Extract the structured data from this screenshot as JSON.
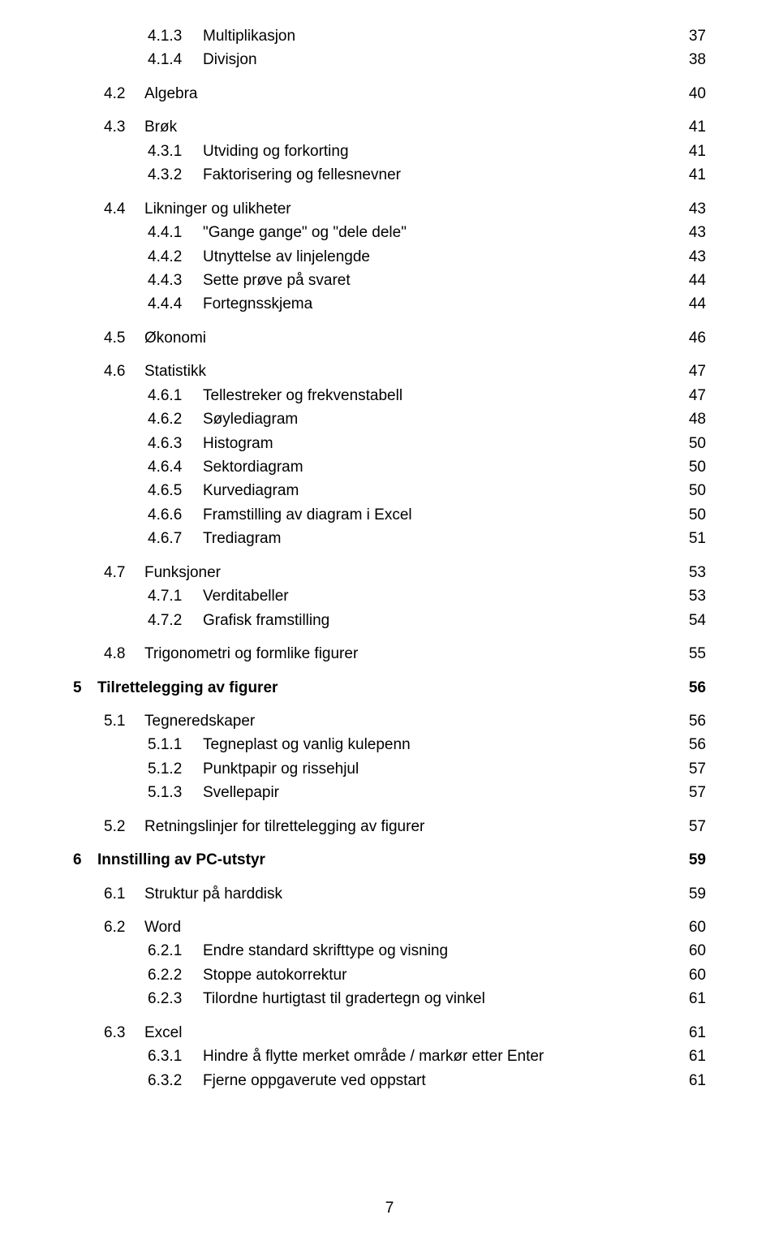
{
  "page_number": "7",
  "entries": [
    {
      "indent": 2,
      "num": "4.1.3",
      "title": "Multiplikasjon",
      "page": "37",
      "bold": false,
      "gap": false
    },
    {
      "indent": 2,
      "num": "4.1.4",
      "title": "Divisjon",
      "page": "38",
      "bold": false,
      "gap": false
    },
    {
      "indent": 1,
      "num": "4.2",
      "title": "Algebra",
      "page": "40",
      "bold": false,
      "gap": true
    },
    {
      "indent": 1,
      "num": "4.3",
      "title": "Brøk",
      "page": "41",
      "bold": false,
      "gap": true
    },
    {
      "indent": 2,
      "num": "4.3.1",
      "title": "Utviding og forkorting",
      "page": "41",
      "bold": false,
      "gap": false
    },
    {
      "indent": 2,
      "num": "4.3.2",
      "title": "Faktorisering og fellesnevner",
      "page": "41",
      "bold": false,
      "gap": false
    },
    {
      "indent": 1,
      "num": "4.4",
      "title": "Likninger og ulikheter",
      "page": "43",
      "bold": false,
      "gap": true
    },
    {
      "indent": 2,
      "num": "4.4.1",
      "title": "\"Gange gange\" og \"dele dele\"",
      "page": "43",
      "bold": false,
      "gap": false
    },
    {
      "indent": 2,
      "num": "4.4.2",
      "title": "Utnyttelse av linjelengde",
      "page": "43",
      "bold": false,
      "gap": false
    },
    {
      "indent": 2,
      "num": "4.4.3",
      "title": "Sette prøve på svaret",
      "page": "44",
      "bold": false,
      "gap": false
    },
    {
      "indent": 2,
      "num": "4.4.4",
      "title": "Fortegnsskjema",
      "page": "44",
      "bold": false,
      "gap": false
    },
    {
      "indent": 1,
      "num": "4.5",
      "title": "Økonomi",
      "page": "46",
      "bold": false,
      "gap": true
    },
    {
      "indent": 1,
      "num": "4.6",
      "title": "Statistikk",
      "page": "47",
      "bold": false,
      "gap": true
    },
    {
      "indent": 2,
      "num": "4.6.1",
      "title": "Tellestreker og frekvenstabell",
      "page": "47",
      "bold": false,
      "gap": false
    },
    {
      "indent": 2,
      "num": "4.6.2",
      "title": "Søylediagram",
      "page": "48",
      "bold": false,
      "gap": false
    },
    {
      "indent": 2,
      "num": "4.6.3",
      "title": "Histogram",
      "page": "50",
      "bold": false,
      "gap": false
    },
    {
      "indent": 2,
      "num": "4.6.4",
      "title": "Sektordiagram",
      "page": "50",
      "bold": false,
      "gap": false
    },
    {
      "indent": 2,
      "num": "4.6.5",
      "title": "Kurvediagram",
      "page": "50",
      "bold": false,
      "gap": false
    },
    {
      "indent": 2,
      "num": "4.6.6",
      "title": "Framstilling av diagram i Excel",
      "page": "50",
      "bold": false,
      "gap": false
    },
    {
      "indent": 2,
      "num": "4.6.7",
      "title": "Trediagram",
      "page": "51",
      "bold": false,
      "gap": false
    },
    {
      "indent": 1,
      "num": "4.7",
      "title": "Funksjoner",
      "page": "53",
      "bold": false,
      "gap": true
    },
    {
      "indent": 2,
      "num": "4.7.1",
      "title": "Verditabeller",
      "page": "53",
      "bold": false,
      "gap": false
    },
    {
      "indent": 2,
      "num": "4.7.2",
      "title": "Grafisk framstilling",
      "page": "54",
      "bold": false,
      "gap": false
    },
    {
      "indent": 1,
      "num": "4.8",
      "title": "Trigonometri og formlike figurer",
      "page": "55",
      "bold": false,
      "gap": true
    },
    {
      "indent": 0,
      "num": "5",
      "title": "Tilrettelegging av figurer",
      "page": "56",
      "bold": true,
      "gap": true
    },
    {
      "indent": 1,
      "num": "5.1",
      "title": "Tegneredskaper",
      "page": "56",
      "bold": false,
      "gap": true
    },
    {
      "indent": 2,
      "num": "5.1.1",
      "title": "Tegneplast og vanlig kulepenn",
      "page": "56",
      "bold": false,
      "gap": false
    },
    {
      "indent": 2,
      "num": "5.1.2",
      "title": "Punktpapir og rissehjul",
      "page": "57",
      "bold": false,
      "gap": false
    },
    {
      "indent": 2,
      "num": "5.1.3",
      "title": "Svellepapir",
      "page": "57",
      "bold": false,
      "gap": false
    },
    {
      "indent": 1,
      "num": "5.2",
      "title": "Retningslinjer for tilrettelegging av figurer",
      "page": "57",
      "bold": false,
      "gap": true
    },
    {
      "indent": 0,
      "num": "6",
      "title": "Innstilling av PC-utstyr",
      "page": "59",
      "bold": true,
      "gap": true
    },
    {
      "indent": 1,
      "num": "6.1",
      "title": "Struktur på harddisk",
      "page": "59",
      "bold": false,
      "gap": true
    },
    {
      "indent": 1,
      "num": "6.2",
      "title": "Word",
      "page": "60",
      "bold": false,
      "gap": true
    },
    {
      "indent": 2,
      "num": "6.2.1",
      "title": "Endre standard skrifttype og visning",
      "page": "60",
      "bold": false,
      "gap": false
    },
    {
      "indent": 2,
      "num": "6.2.2",
      "title": "Stoppe autokorrektur",
      "page": "60",
      "bold": false,
      "gap": false
    },
    {
      "indent": 2,
      "num": "6.2.3",
      "title": "Tilordne hurtigtast til gradertegn og vinkel",
      "page": "61",
      "bold": false,
      "gap": false
    },
    {
      "indent": 1,
      "num": "6.3",
      "title": "Excel",
      "page": "61",
      "bold": false,
      "gap": true
    },
    {
      "indent": 2,
      "num": "6.3.1",
      "title": "Hindre å flytte merket område / markør etter Enter",
      "page": "61",
      "bold": false,
      "gap": false
    },
    {
      "indent": 2,
      "num": "6.3.2",
      "title": "Fjerne oppgaverute ved oppstart",
      "page": "61",
      "bold": false,
      "gap": false
    }
  ]
}
